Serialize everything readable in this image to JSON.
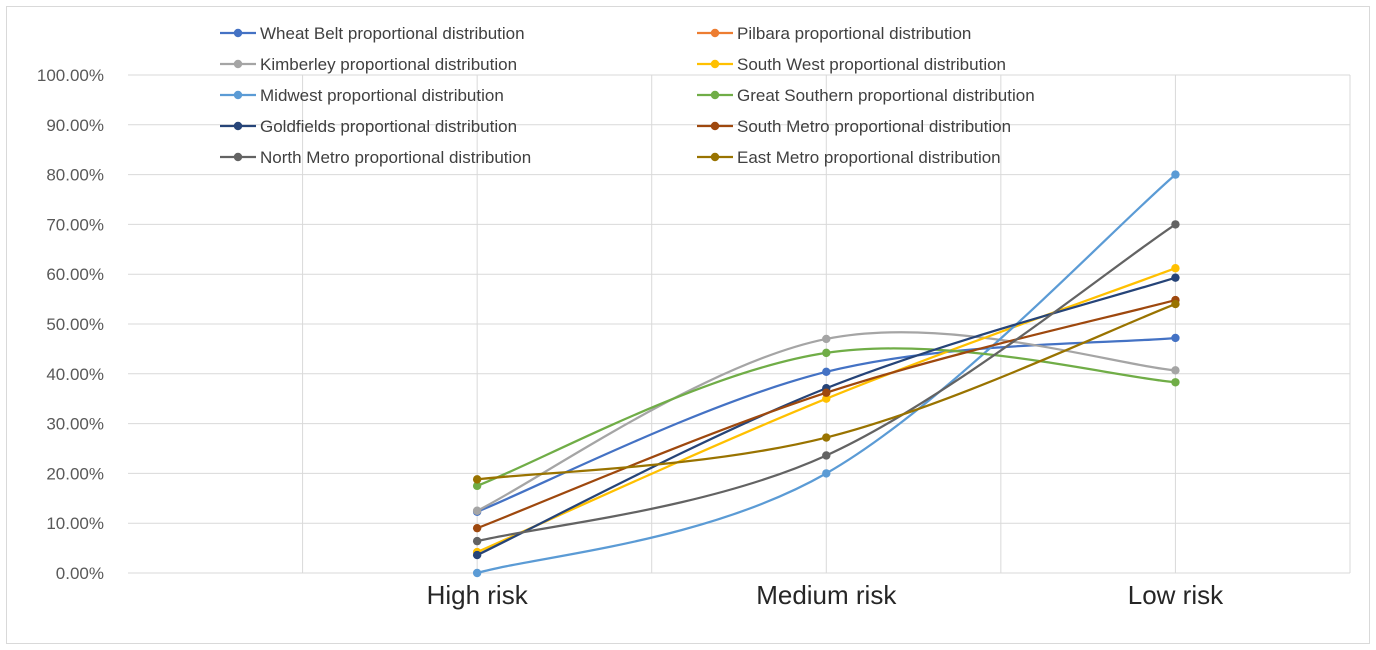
{
  "chart_data": {
    "type": "line",
    "smooth": true,
    "categories": [
      "High risk",
      "Medium risk",
      "Low risk"
    ],
    "ylim": [
      0,
      1
    ],
    "ytick_step": 0.1,
    "ytick_format": "percent2",
    "yticks": [
      "0.00%",
      "10.00%",
      "20.00%",
      "30.00%",
      "40.00%",
      "50.00%",
      "60.00%",
      "70.00%",
      "80.00%",
      "90.00%",
      "100.00%"
    ],
    "grid": true,
    "legend_position": "top",
    "series": [
      {
        "name": "Wheat Belt proportional distribution",
        "color": "#4472C4",
        "values": [
          0.123,
          0.404,
          0.472
        ]
      },
      {
        "name": "Pilbara proportional distribution",
        "color": "#ED7D31",
        "values": [
          null,
          null,
          null
        ]
      },
      {
        "name": "Kimberley proportional distribution",
        "color": "#A5A5A5",
        "values": [
          0.125,
          0.47,
          0.407
        ]
      },
      {
        "name": "South West proportional distribution",
        "color": "#FFC000",
        "values": [
          0.042,
          0.35,
          0.612
        ]
      },
      {
        "name": "Midwest proportional distribution",
        "color": "#5B9BD5",
        "values": [
          0.0,
          0.2,
          0.8
        ]
      },
      {
        "name": "Great Southern proportional distribution",
        "color": "#70AD47",
        "values": [
          0.175,
          0.442,
          0.383
        ]
      },
      {
        "name": "Goldfields proportional distribution",
        "color": "#264478",
        "values": [
          0.036,
          0.371,
          0.593
        ]
      },
      {
        "name": "South Metro proportional distribution",
        "color": "#9E480E",
        "values": [
          0.09,
          0.362,
          0.548
        ]
      },
      {
        "name": "North Metro proportional distribution",
        "color": "#636363",
        "values": [
          0.064,
          0.236,
          0.7
        ]
      },
      {
        "name": "East Metro proportional distribution",
        "color": "#997300",
        "values": [
          0.188,
          0.272,
          0.54
        ]
      }
    ]
  }
}
